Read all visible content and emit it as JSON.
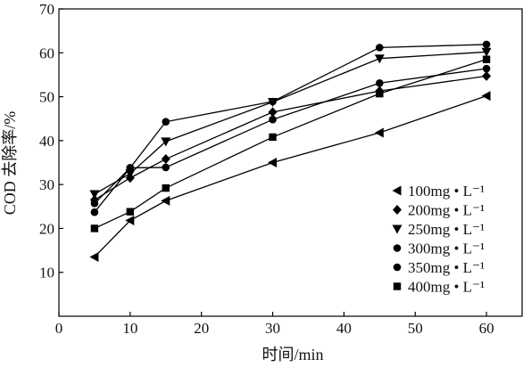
{
  "chart_data": {
    "type": "line",
    "title": "",
    "xlabel": "时间/min",
    "ylabel": "COD 去除率/%",
    "xlim": [
      0,
      65
    ],
    "ylim": [
      0,
      70
    ],
    "xticks": [
      0,
      10,
      20,
      30,
      40,
      50,
      60
    ],
    "yticks": [
      10,
      20,
      30,
      40,
      50,
      60,
      70
    ],
    "grid": false,
    "legend_position": "bottom-right",
    "x": [
      5,
      10,
      15,
      30,
      45,
      60
    ],
    "series": [
      {
        "name": "100mg • L⁻¹",
        "marker": "triangle-left",
        "values": [
          13.5,
          21.8,
          26.3,
          35.0,
          41.8,
          50.2
        ]
      },
      {
        "name": "200mg • L⁻¹",
        "marker": "diamond",
        "values": [
          26.5,
          31.5,
          35.8,
          46.5,
          51.3,
          54.7
        ]
      },
      {
        "name": "250mg • L⁻¹",
        "marker": "triangle-down",
        "values": [
          27.8,
          32.5,
          39.8,
          48.8,
          58.7,
          60.2
        ]
      },
      {
        "name": "300mg • L⁻¹",
        "marker": "circle",
        "values": [
          23.7,
          33.8,
          44.3,
          48.9,
          61.2,
          61.9
        ]
      },
      {
        "name": "350mg • L⁻¹",
        "marker": "circle",
        "values": [
          25.7,
          33.8,
          33.9,
          44.8,
          53.1,
          56.4
        ]
      },
      {
        "name": "400mg • L⁻¹",
        "marker": "square",
        "values": [
          20.0,
          23.8,
          29.2,
          40.8,
          50.7,
          58.5
        ]
      }
    ]
  }
}
